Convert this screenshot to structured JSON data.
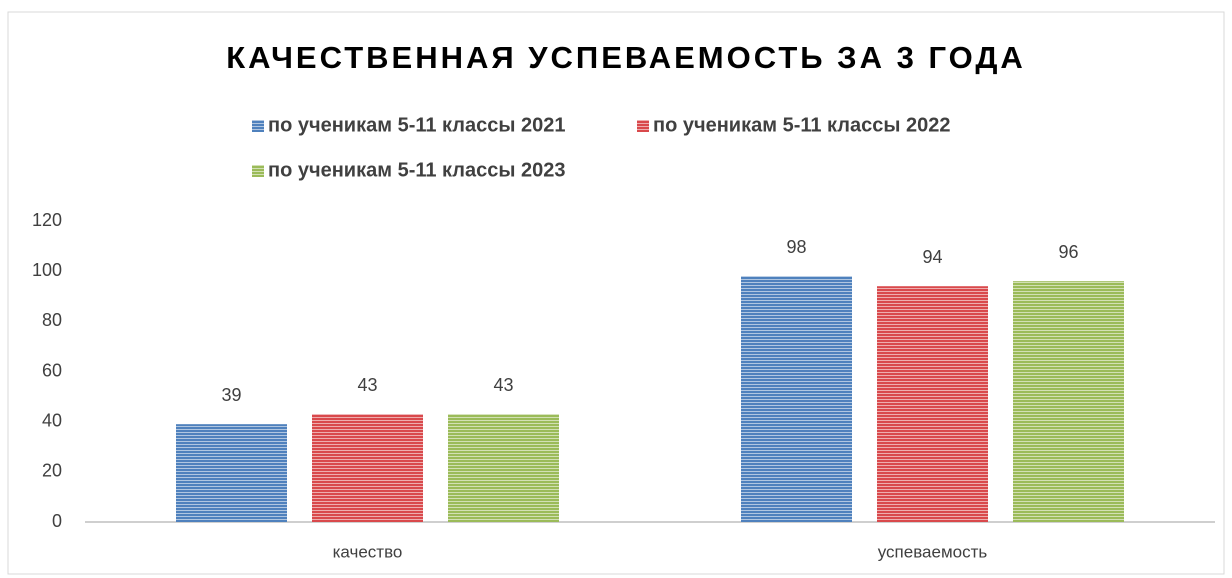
{
  "chart_data": {
    "type": "bar",
    "title": "КАЧЕСТВЕННАЯ УСПЕВАЕМОСТЬ ЗА 3 ГОДА",
    "categories": [
      "качество",
      "успеваемость"
    ],
    "series": [
      {
        "name": "по ученикам 5-11 классы 2021",
        "color": "#4f81bd",
        "values": [
          39,
          98
        ]
      },
      {
        "name": "по ученикам 5-11 классы 2022",
        "color": "#d9494c",
        "values": [
          43,
          94
        ]
      },
      {
        "name": "по ученикам 5-11 классы 2023",
        "color": "#9bbb59",
        "values": [
          43,
          96
        ]
      }
    ],
    "ylim": [
      0,
      120
    ],
    "yticks": [
      0,
      20,
      40,
      60,
      80,
      100,
      120
    ],
    "grid": false,
    "legend": "top"
  }
}
